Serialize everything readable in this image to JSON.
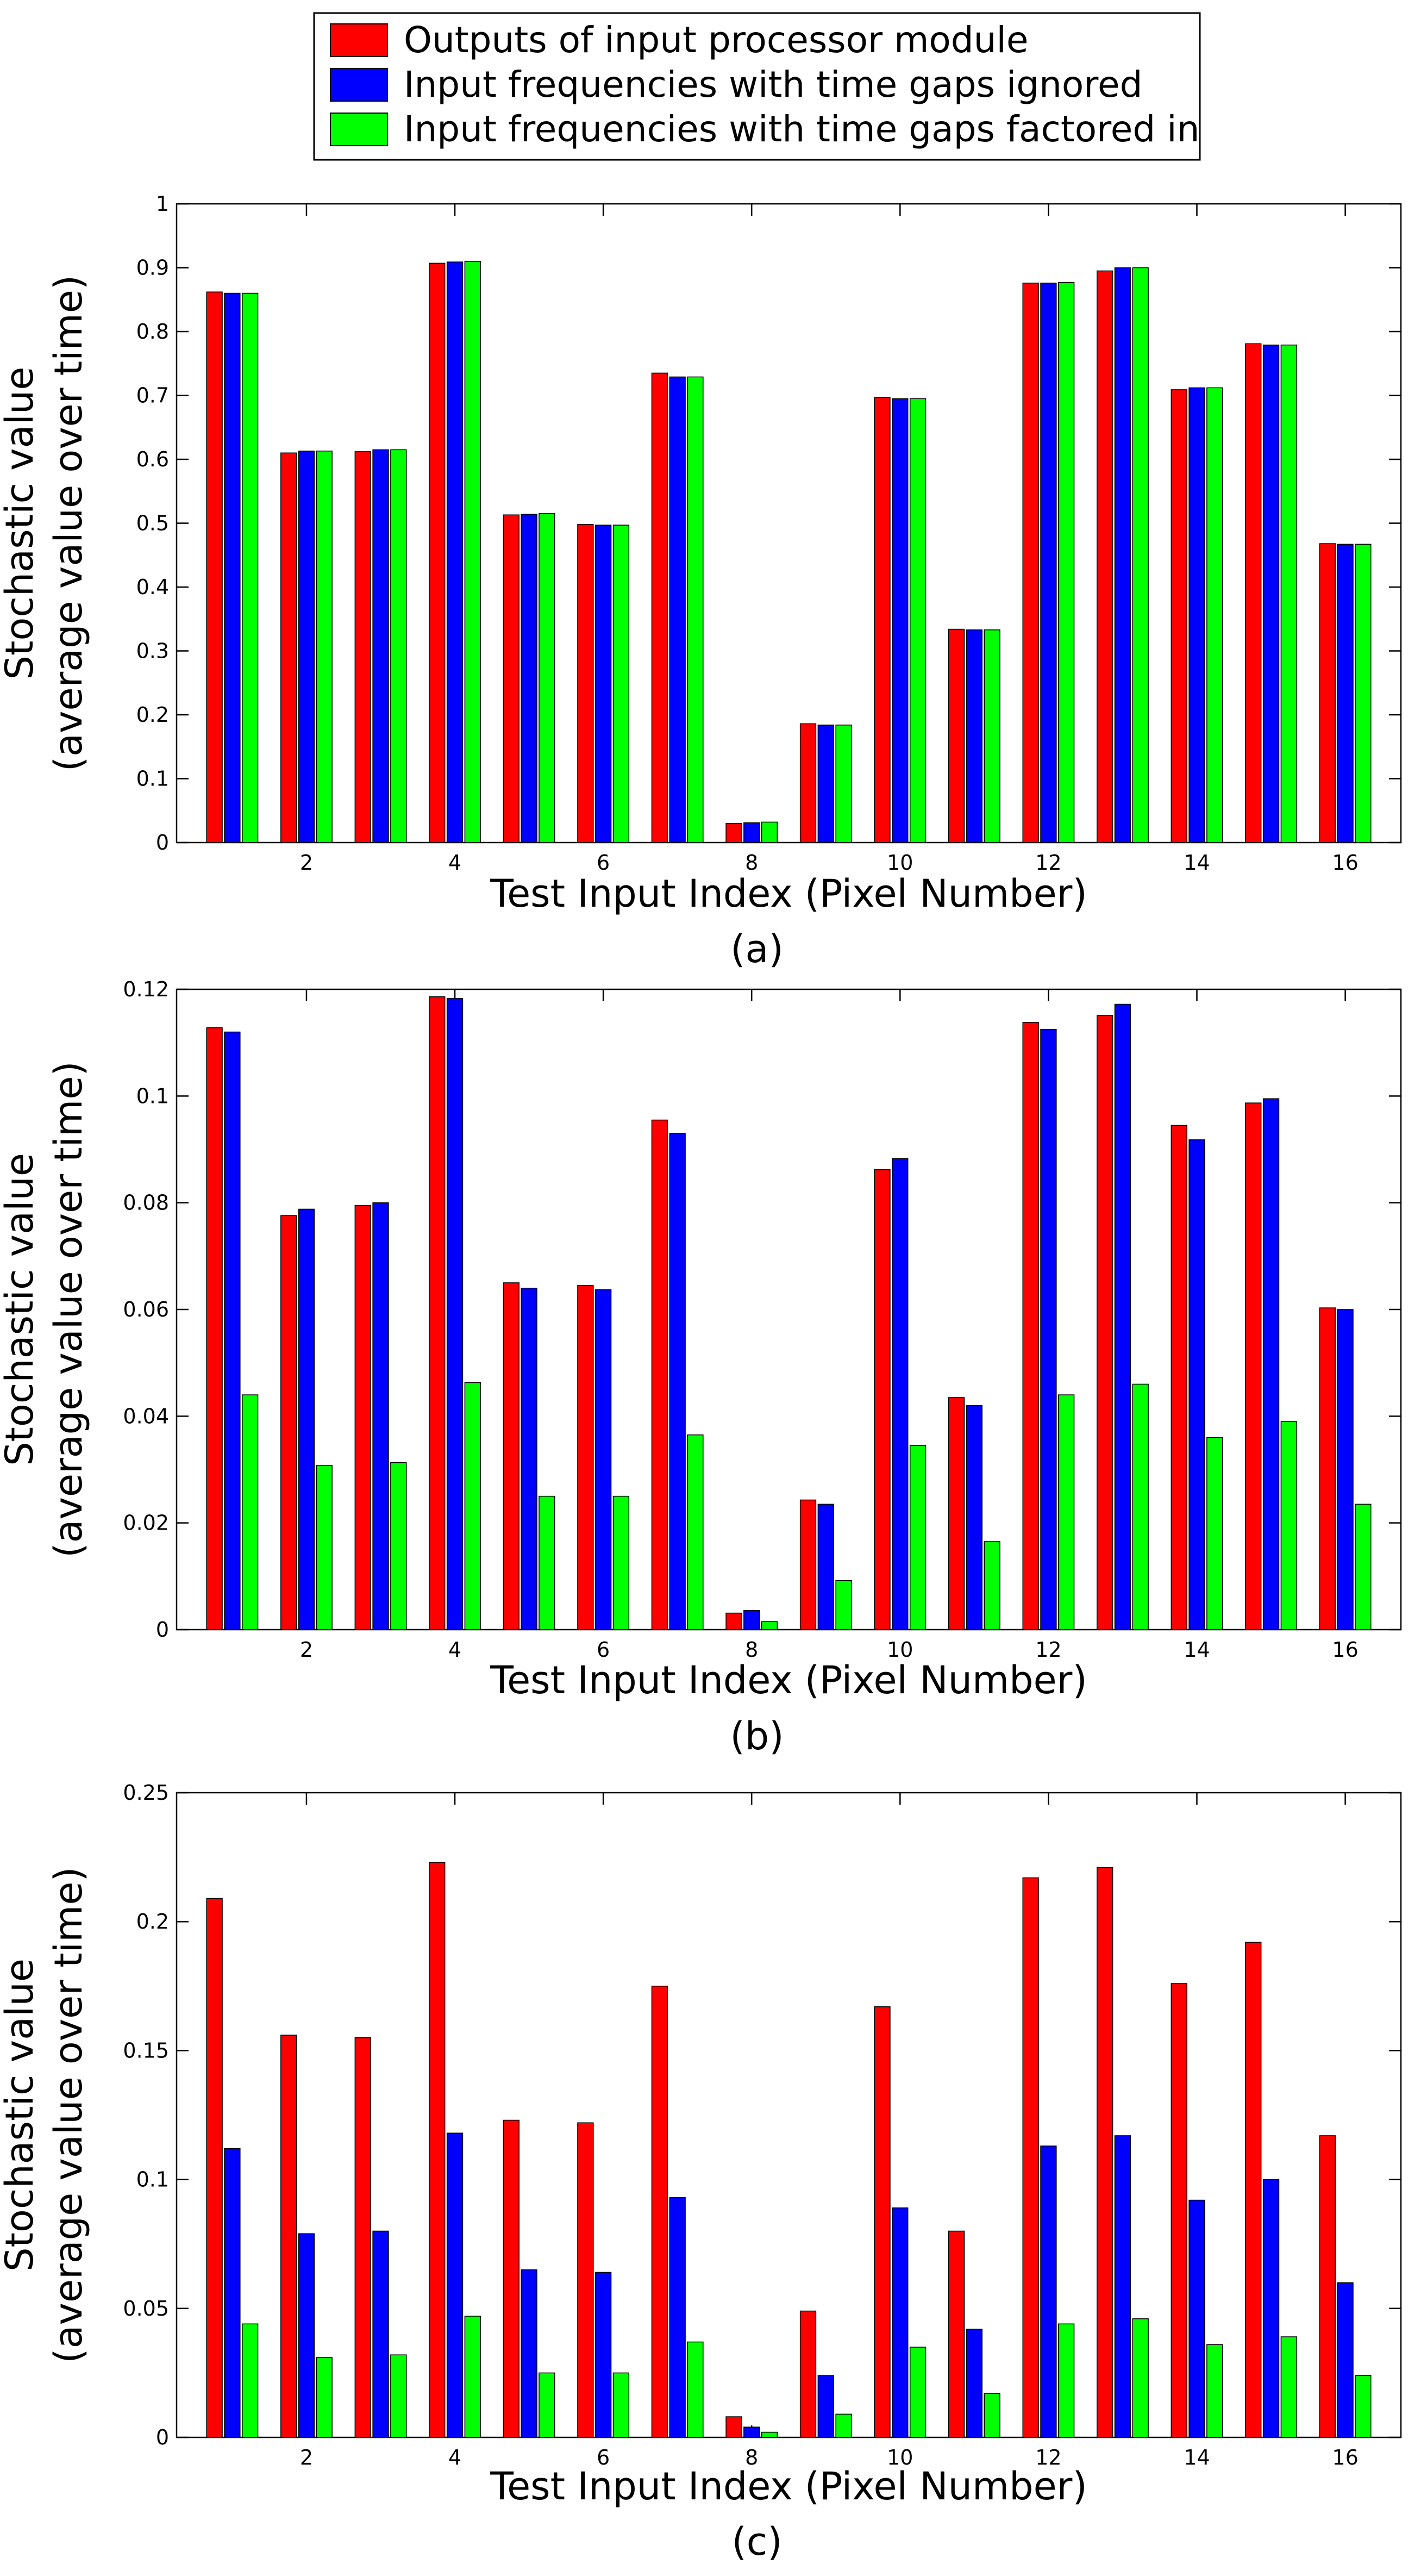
{
  "legend": {
    "entries": [
      {
        "label": "Outputs of input processor module",
        "color": "#ff0000"
      },
      {
        "label": "Input frequencies with time gaps ignored",
        "color": "#0000ff"
      },
      {
        "label": "Input frequencies with time gaps factored in",
        "color": "#00ff00"
      }
    ]
  },
  "chart_data": [
    {
      "type": "bar",
      "panel_label": "(a)",
      "xlabel": "Test Input Index (Pixel Number)",
      "ylabel": "Stochastic value",
      "ylabel2": "(average value over time)",
      "categories": [
        1,
        2,
        3,
        4,
        5,
        6,
        7,
        8,
        9,
        10,
        11,
        12,
        13,
        14,
        15,
        16
      ],
      "xticks": [
        "2",
        "4",
        "6",
        "8",
        "10",
        "12",
        "14",
        "16"
      ],
      "yticks": [
        "0",
        "0.1",
        "0.2",
        "0.3",
        "0.4",
        "0.5",
        "0.6",
        "0.7",
        "0.8",
        "0.9",
        "1"
      ],
      "ylim": [
        0,
        1
      ],
      "series": [
        {
          "name": "Outputs of input processor module",
          "values": [
            0.862,
            0.61,
            0.612,
            0.907,
            0.513,
            0.498,
            0.735,
            0.03,
            0.186,
            0.697,
            0.334,
            0.876,
            0.895,
            0.709,
            0.781,
            0.468
          ]
        },
        {
          "name": "Input frequencies with time gaps ignored",
          "values": [
            0.86,
            0.613,
            0.615,
            0.909,
            0.514,
            0.497,
            0.729,
            0.031,
            0.184,
            0.695,
            0.333,
            0.876,
            0.9,
            0.712,
            0.779,
            0.467
          ]
        },
        {
          "name": "Input frequencies with time gaps factored in",
          "values": [
            0.86,
            0.613,
            0.615,
            0.91,
            0.515,
            0.497,
            0.729,
            0.032,
            0.184,
            0.695,
            0.333,
            0.877,
            0.9,
            0.712,
            0.779,
            0.467
          ]
        }
      ]
    },
    {
      "type": "bar",
      "panel_label": "(b)",
      "xlabel": "Test Input Index (Pixel Number)",
      "ylabel": "Stochastic value",
      "ylabel2": "(average value over time)",
      "categories": [
        1,
        2,
        3,
        4,
        5,
        6,
        7,
        8,
        9,
        10,
        11,
        12,
        13,
        14,
        15,
        16
      ],
      "xticks": [
        "2",
        "4",
        "6",
        "8",
        "10",
        "12",
        "14",
        "16"
      ],
      "yticks": [
        "0",
        "0.02",
        "0.04",
        "0.06",
        "0.08",
        "0.1",
        "0.12"
      ],
      "ylim": [
        0,
        0.12
      ],
      "series": [
        {
          "name": "Outputs of input processor module",
          "values": [
            0.1128,
            0.0776,
            0.0795,
            0.1186,
            0.065,
            0.0645,
            0.0955,
            0.0031,
            0.0243,
            0.0862,
            0.0435,
            0.1138,
            0.1151,
            0.0945,
            0.0987,
            0.0603
          ]
        },
        {
          "name": "Input frequencies with time gaps ignored",
          "values": [
            0.112,
            0.0788,
            0.08,
            0.1183,
            0.064,
            0.0637,
            0.093,
            0.0036,
            0.0235,
            0.0883,
            0.042,
            0.1125,
            0.1172,
            0.0918,
            0.0995,
            0.06
          ]
        },
        {
          "name": "Input frequencies with time gaps factored in",
          "values": [
            0.044,
            0.0308,
            0.0313,
            0.0463,
            0.025,
            0.025,
            0.0365,
            0.0015,
            0.0092,
            0.0345,
            0.0165,
            0.044,
            0.046,
            0.036,
            0.039,
            0.0235
          ]
        }
      ]
    },
    {
      "type": "bar",
      "panel_label": "(c)",
      "xlabel": "Test Input Index (Pixel Number)",
      "ylabel": "Stochastic value",
      "ylabel2": "(average value over time)",
      "categories": [
        1,
        2,
        3,
        4,
        5,
        6,
        7,
        8,
        9,
        10,
        11,
        12,
        13,
        14,
        15,
        16
      ],
      "xticks": [
        "2",
        "4",
        "6",
        "8",
        "10",
        "12",
        "14",
        "16"
      ],
      "yticks": [
        "0",
        "0.05",
        "0.1",
        "0.15",
        "0.2",
        "0.25"
      ],
      "ylim": [
        0,
        0.25
      ],
      "series": [
        {
          "name": "Outputs of input processor module",
          "values": [
            0.209,
            0.156,
            0.155,
            0.223,
            0.123,
            0.122,
            0.175,
            0.008,
            0.049,
            0.167,
            0.08,
            0.217,
            0.221,
            0.176,
            0.192,
            0.117
          ]
        },
        {
          "name": "Input frequencies with time gaps ignored",
          "values": [
            0.112,
            0.079,
            0.08,
            0.118,
            0.065,
            0.064,
            0.093,
            0.004,
            0.024,
            0.089,
            0.042,
            0.113,
            0.117,
            0.092,
            0.1,
            0.06
          ]
        },
        {
          "name": "Input frequencies with time gaps factored in",
          "values": [
            0.044,
            0.031,
            0.032,
            0.047,
            0.025,
            0.025,
            0.037,
            0.002,
            0.009,
            0.035,
            0.017,
            0.044,
            0.046,
            0.036,
            0.039,
            0.024
          ]
        }
      ]
    }
  ]
}
